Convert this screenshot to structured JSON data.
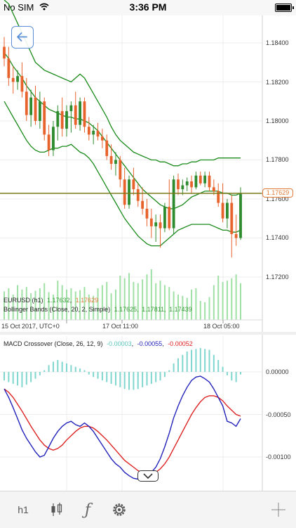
{
  "status": {
    "carrier": "No SIM",
    "time": "3:36 PM"
  },
  "price_axis": [
    "1.18400",
    "1.18200",
    "1.18000",
    "1.17800",
    "1.17600",
    "1.17400",
    "1.17200"
  ],
  "time_axis": [
    "15 Oct 2017, UTC+0",
    "17 Oct 11:00",
    "18 Oct 05:00"
  ],
  "current_price": "1.17629",
  "legend": {
    "symbol": "EURUSD (h1)",
    "v1": "1.17632",
    "sep1": ",",
    "v2": "1.17629",
    "bb_label": "Bollinger Bands (Close, 20, 2, Simple)",
    "bb1": "1.17625",
    "bb2": "1.17811",
    "bb3": "1.17439"
  },
  "macd": {
    "label": "MACD Crossover (Close, 26, 12, 9)",
    "v1": "-0.00003",
    "v2": "-0.00055",
    "v3": "-0.00052",
    "axis": [
      "0.00000",
      "-0.00050",
      "-0.00100"
    ]
  },
  "toolbar": {
    "timeframe": "h1"
  },
  "colors": {
    "bull": "#2e8b2e",
    "bear": "#e8622c",
    "bollinger": "#1a8a1a",
    "price_line": "#7a7a1a",
    "macd_line": "#2222bb",
    "signal_line": "#dd2222",
    "histogram": "#7fd6cf",
    "volume": "#9fe0a5"
  },
  "chart_data": {
    "type": "candlestick",
    "ylim": [
      1.1715,
      1.1855
    ],
    "candles": [
      {
        "o": 1.1838,
        "h": 1.1843,
        "l": 1.1828,
        "c": 1.1832
      },
      {
        "o": 1.1832,
        "h": 1.1838,
        "l": 1.1818,
        "c": 1.1822
      },
      {
        "o": 1.1822,
        "h": 1.1828,
        "l": 1.1814,
        "c": 1.182
      },
      {
        "o": 1.182,
        "h": 1.1826,
        "l": 1.1816,
        "c": 1.1823
      },
      {
        "o": 1.1823,
        "h": 1.183,
        "l": 1.1812,
        "c": 1.1815
      },
      {
        "o": 1.1815,
        "h": 1.1822,
        "l": 1.18,
        "c": 1.1803
      },
      {
        "o": 1.1803,
        "h": 1.1816,
        "l": 1.1797,
        "c": 1.1812
      },
      {
        "o": 1.1812,
        "h": 1.1818,
        "l": 1.1798,
        "c": 1.18
      },
      {
        "o": 1.18,
        "h": 1.1815,
        "l": 1.1796,
        "c": 1.181
      },
      {
        "o": 1.181,
        "h": 1.1812,
        "l": 1.179,
        "c": 1.1793
      },
      {
        "o": 1.1793,
        "h": 1.1798,
        "l": 1.1782,
        "c": 1.1785
      },
      {
        "o": 1.1785,
        "h": 1.18,
        "l": 1.1782,
        "c": 1.1797
      },
      {
        "o": 1.1797,
        "h": 1.1808,
        "l": 1.179,
        "c": 1.1805
      },
      {
        "o": 1.1805,
        "h": 1.1812,
        "l": 1.1792,
        "c": 1.1796
      },
      {
        "o": 1.1796,
        "h": 1.1808,
        "l": 1.1792,
        "c": 1.1805
      },
      {
        "o": 1.1805,
        "h": 1.181,
        "l": 1.1794,
        "c": 1.1808
      },
      {
        "o": 1.1808,
        "h": 1.1815,
        "l": 1.1796,
        "c": 1.1798
      },
      {
        "o": 1.1798,
        "h": 1.1812,
        "l": 1.1795,
        "c": 1.181
      },
      {
        "o": 1.181,
        "h": 1.1812,
        "l": 1.1794,
        "c": 1.1797
      },
      {
        "o": 1.1797,
        "h": 1.1802,
        "l": 1.179,
        "c": 1.1793
      },
      {
        "o": 1.1793,
        "h": 1.1798,
        "l": 1.1788,
        "c": 1.1795
      },
      {
        "o": 1.1795,
        "h": 1.1799,
        "l": 1.179,
        "c": 1.1792
      },
      {
        "o": 1.1792,
        "h": 1.1796,
        "l": 1.1786,
        "c": 1.179
      },
      {
        "o": 1.179,
        "h": 1.1793,
        "l": 1.178,
        "c": 1.1782
      },
      {
        "o": 1.1782,
        "h": 1.1788,
        "l": 1.1775,
        "c": 1.1778
      },
      {
        "o": 1.1778,
        "h": 1.1784,
        "l": 1.1772,
        "c": 1.178
      },
      {
        "o": 1.178,
        "h": 1.1782,
        "l": 1.1766,
        "c": 1.177
      },
      {
        "o": 1.177,
        "h": 1.1776,
        "l": 1.1755,
        "c": 1.1757
      },
      {
        "o": 1.1757,
        "h": 1.1772,
        "l": 1.1755,
        "c": 1.177
      },
      {
        "o": 1.177,
        "h": 1.1776,
        "l": 1.1762,
        "c": 1.1765
      },
      {
        "o": 1.1765,
        "h": 1.1768,
        "l": 1.1756,
        "c": 1.1759
      },
      {
        "o": 1.1759,
        "h": 1.1766,
        "l": 1.1752,
        "c": 1.1755
      },
      {
        "o": 1.1755,
        "h": 1.176,
        "l": 1.1746,
        "c": 1.175
      },
      {
        "o": 1.175,
        "h": 1.1755,
        "l": 1.174,
        "c": 1.1746
      },
      {
        "o": 1.1746,
        "h": 1.1752,
        "l": 1.1738,
        "c": 1.1748
      },
      {
        "o": 1.1748,
        "h": 1.1752,
        "l": 1.1735,
        "c": 1.1745
      },
      {
        "o": 1.1745,
        "h": 1.1758,
        "l": 1.1743,
        "c": 1.1756
      },
      {
        "o": 1.1756,
        "h": 1.177,
        "l": 1.1744,
        "c": 1.1745
      },
      {
        "o": 1.1745,
        "h": 1.1772,
        "l": 1.1742,
        "c": 1.177
      },
      {
        "o": 1.177,
        "h": 1.1773,
        "l": 1.1762,
        "c": 1.1765
      },
      {
        "o": 1.1765,
        "h": 1.177,
        "l": 1.1762,
        "c": 1.1767
      },
      {
        "o": 1.1767,
        "h": 1.1771,
        "l": 1.1764,
        "c": 1.1769
      },
      {
        "o": 1.1769,
        "h": 1.1772,
        "l": 1.1763,
        "c": 1.1766
      },
      {
        "o": 1.1766,
        "h": 1.1774,
        "l": 1.1765,
        "c": 1.1772
      },
      {
        "o": 1.1772,
        "h": 1.1774,
        "l": 1.1767,
        "c": 1.1768
      },
      {
        "o": 1.1768,
        "h": 1.1774,
        "l": 1.1766,
        "c": 1.1772
      },
      {
        "o": 1.1772,
        "h": 1.1774,
        "l": 1.1764,
        "c": 1.1766
      },
      {
        "o": 1.1766,
        "h": 1.177,
        "l": 1.1762,
        "c": 1.1764
      },
      {
        "o": 1.1764,
        "h": 1.1768,
        "l": 1.1756,
        "c": 1.1758
      },
      {
        "o": 1.1758,
        "h": 1.1768,
        "l": 1.1748,
        "c": 1.175
      },
      {
        "o": 1.175,
        "h": 1.176,
        "l": 1.1745,
        "c": 1.1758
      },
      {
        "o": 1.1758,
        "h": 1.1762,
        "l": 1.173,
        "c": 1.1742
      },
      {
        "o": 1.1742,
        "h": 1.1752,
        "l": 1.1736,
        "c": 1.174
      },
      {
        "o": 1.174,
        "h": 1.1766,
        "l": 1.1739,
        "c": 1.1763
      }
    ],
    "bollinger_upper": [
      1.1862,
      1.186,
      1.1855,
      1.185,
      1.1845,
      1.184,
      1.1835,
      1.183,
      1.1828,
      1.1826,
      1.1825,
      1.1824,
      1.1823,
      1.1822,
      1.1821,
      1.182,
      1.1822,
      1.1824,
      1.1822,
      1.1818,
      1.1814,
      1.181,
      1.1806,
      1.1802,
      1.1797,
      1.1793,
      1.179,
      1.1788,
      1.1786,
      1.1784,
      1.1783,
      1.1782,
      1.1781,
      1.178,
      1.178,
      1.1779,
      1.1779,
      1.1778,
      1.1777,
      1.1777,
      1.1778,
      1.1778,
      1.1779,
      1.1779,
      1.178,
      1.178,
      1.178,
      1.178,
      1.1781,
      1.1781,
      1.1781,
      1.1781,
      1.1781,
      1.1781
    ],
    "bollinger_middle": [
      1.1835,
      1.1832,
      1.1828,
      1.1825,
      1.1822,
      1.1818,
      1.1815,
      1.1812,
      1.181,
      1.1808,
      1.1806,
      1.1805,
      1.1804,
      1.1803,
      1.1802,
      1.1802,
      1.1801,
      1.1801,
      1.18,
      1.1799,
      1.1797,
      1.1795,
      1.1792,
      1.1789,
      1.1786,
      1.1783,
      1.178,
      1.1777,
      1.1774,
      1.1771,
      1.1768,
      1.1765,
      1.1763,
      1.1761,
      1.1759,
      1.1757,
      1.1756,
      1.1755,
      1.1755,
      1.1756,
      1.1757,
      1.1759,
      1.1761,
      1.1762,
      1.1763,
      1.1764,
      1.1764,
      1.1764,
      1.1764,
      1.1763,
      1.1763,
      1.1762,
      1.1762,
      1.1763
    ],
    "bollinger_lower": [
      1.181,
      1.1806,
      1.1802,
      1.1798,
      1.1794,
      1.179,
      1.1787,
      1.1785,
      1.1784,
      1.1784,
      1.1785,
      1.1786,
      1.1786,
      1.1787,
      1.1787,
      1.1788,
      1.1786,
      1.1784,
      1.1783,
      1.1781,
      1.1778,
      1.1774,
      1.177,
      1.1766,
      1.1762,
      1.1758,
      1.1754,
      1.175,
      1.1747,
      1.1744,
      1.1741,
      1.1739,
      1.1737,
      1.1736,
      1.1736,
      1.1736,
      1.1738,
      1.174,
      1.1742,
      1.1744,
      1.1745,
      1.1746,
      1.1747,
      1.1747,
      1.1747,
      1.1747,
      1.1747,
      1.1746,
      1.1745,
      1.1744,
      1.1744,
      1.1743,
      1.1743,
      1.1744
    ],
    "volume": [
      0.45,
      0.5,
      0.4,
      0.55,
      0.48,
      0.52,
      0.42,
      0.46,
      0.5,
      0.58,
      0.44,
      0.4,
      0.62,
      0.55,
      0.48,
      0.5,
      0.45,
      0.47,
      0.52,
      0.4,
      0.38,
      0.5,
      0.55,
      0.6,
      0.42,
      0.48,
      0.7,
      0.66,
      0.74,
      0.6,
      0.58,
      0.64,
      0.72,
      0.8,
      0.58,
      0.62,
      0.55,
      0.52,
      0.45,
      0.4,
      0.38,
      0.35,
      0.48,
      0.5,
      0.3,
      0.28,
      0.36,
      0.55,
      0.7,
      0.6,
      0.62,
      0.66,
      0.72,
      0.58
    ],
    "macd_histogram": [
      -0.0001,
      -0.00012,
      -0.00014,
      -0.00016,
      -0.00018,
      -0.00015,
      -0.00012,
      -8e-05,
      -4e-05,
      2e-05,
      8e-05,
      0.00012,
      0.00014,
      0.00012,
      0.0001,
      8e-05,
      6e-05,
      4e-05,
      2e-05,
      -3e-05,
      -6e-05,
      -8e-05,
      -0.0001,
      -0.00012,
      -0.00014,
      -0.00016,
      -0.00018,
      -0.0002,
      -0.00021,
      -0.00021,
      -0.0002,
      -0.00018,
      -0.00016,
      -0.00014,
      -0.00012,
      -0.0001,
      -6e-05,
      2e-05,
      0.0001,
      0.00016,
      0.0002,
      0.00024,
      0.00026,
      0.00027,
      0.00028,
      0.00027,
      0.00026,
      0.0002,
      0.00014,
      6e-05,
      -4e-05,
      -0.0001,
      -0.00012,
      -3e-05
    ],
    "macd_line": [
      -0.0002,
      -0.0003,
      -0.00042,
      -0.00055,
      -0.00068,
      -0.00078,
      -0.00086,
      -0.00094,
      -0.001,
      -0.00098,
      -0.00088,
      -0.00078,
      -0.0007,
      -0.00064,
      -0.0006,
      -0.00058,
      -0.00062,
      -0.00064,
      -0.0006,
      -0.00064,
      -0.0007,
      -0.00078,
      -0.00086,
      -0.00094,
      -0.00102,
      -0.00108,
      -0.00112,
      -0.00118,
      -0.00122,
      -0.00125,
      -0.00126,
      -0.00126,
      -0.00122,
      -0.00118,
      -0.00112,
      -0.00102,
      -0.00088,
      -0.00072,
      -0.00054,
      -0.0004,
      -0.00028,
      -0.00018,
      -0.0001,
      -6e-05,
      -5e-05,
      -8e-05,
      -0.00012,
      -0.0002,
      -0.0003,
      -0.0004,
      -0.00058,
      -0.0006,
      -0.00064,
      -0.00055
    ],
    "signal_line": [
      -0.0002,
      -0.00024,
      -0.0003,
      -0.00038,
      -0.00046,
      -0.00055,
      -0.00064,
      -0.00072,
      -0.0008,
      -0.00086,
      -0.0009,
      -0.00092,
      -0.0009,
      -0.00086,
      -0.0008,
      -0.00075,
      -0.0007,
      -0.00066,
      -0.00064,
      -0.00064,
      -0.00066,
      -0.0007,
      -0.00075,
      -0.0008,
      -0.00086,
      -0.00092,
      -0.00098,
      -0.00104,
      -0.00108,
      -0.00112,
      -0.00116,
      -0.00118,
      -0.0012,
      -0.0012,
      -0.00118,
      -0.00114,
      -0.00108,
      -0.001,
      -0.0009,
      -0.0008,
      -0.0007,
      -0.0006,
      -0.0005,
      -0.00042,
      -0.00035,
      -0.0003,
      -0.00028,
      -0.00028,
      -0.0003,
      -0.00034,
      -0.0004,
      -0.00045,
      -0.0005,
      -0.00052
    ],
    "macd_ylim": [
      -0.0014,
      0.0004
    ]
  }
}
